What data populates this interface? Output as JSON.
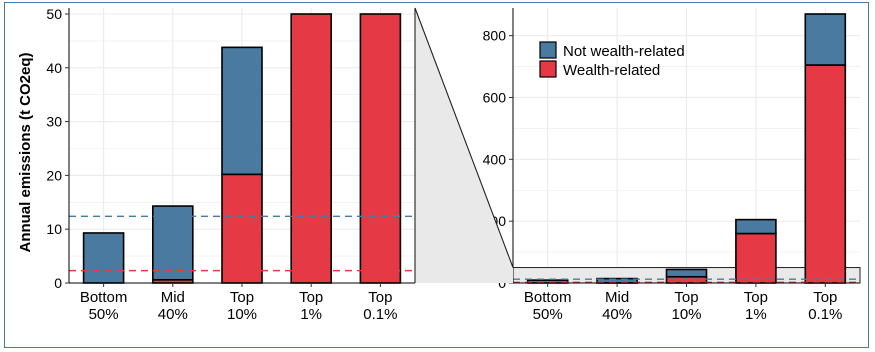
{
  "colors": {
    "wealth": "#e63946",
    "not_wealth": "#4a7aa0",
    "grid": "#ebebeb",
    "zoom_fill": "#e9e9e9",
    "line_red": "#e63946",
    "line_blue": "#4a7aa0"
  },
  "chart_data": [
    {
      "type": "bar",
      "stacked": true,
      "title": "",
      "xlabel": "",
      "ylabel": "Annual emissions (t CO2eq)",
      "ylim": [
        0,
        50
      ],
      "yticks": [
        "0",
        "10",
        "20",
        "30",
        "40",
        "50"
      ],
      "categories": [
        "Bottom 50%",
        "Mid 40%",
        "Top 10%",
        "Top 1%",
        "Top 0.1%"
      ],
      "series": [
        {
          "name": "Wealth-related",
          "values": [
            0,
            0.6,
            20.2,
            50,
            50
          ]
        },
        {
          "name": "Not wealth-related",
          "values": [
            9.3,
            13.7,
            23.6,
            0,
            0
          ]
        }
      ],
      "reference_lines": [
        {
          "series": "Not wealth-related",
          "y": 12.4,
          "style": "dashed"
        },
        {
          "series": "Wealth-related",
          "y": 2.3,
          "style": "dashed"
        }
      ],
      "clipped_at": 50,
      "grid": true
    },
    {
      "type": "bar",
      "stacked": true,
      "title": "",
      "xlabel": "",
      "ylabel": "",
      "ylim": [
        0,
        870
      ],
      "yticks": [
        "0",
        "200",
        "400",
        "600",
        "800"
      ],
      "categories": [
        "Bottom 50%",
        "Mid 40%",
        "Top 10%",
        "Top 1%",
        "Top 0.1%"
      ],
      "series": [
        {
          "name": "Wealth-related",
          "values": [
            0,
            0.6,
            20.2,
            160,
            705
          ]
        },
        {
          "name": "Not wealth-related",
          "values": [
            9.3,
            13.7,
            23.6,
            45,
            165
          ]
        }
      ],
      "reference_lines": [
        {
          "series": "Not wealth-related",
          "y": 12.4,
          "style": "dashed"
        },
        {
          "series": "Wealth-related",
          "y": 2.3,
          "style": "dashed"
        }
      ],
      "zoom_band": [
        0,
        50
      ],
      "legend": {
        "placement": "top-left",
        "entries": [
          "Not wealth-related",
          "Wealth-related"
        ]
      },
      "grid": true
    }
  ]
}
